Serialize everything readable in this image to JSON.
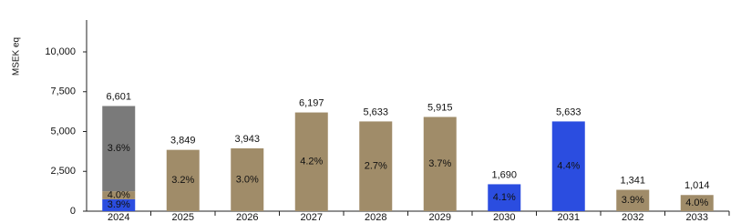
{
  "chart_data": {
    "type": "stacked_bar",
    "y_label": "MSEK eq",
    "categories": [
      "2024",
      "2025",
      "2026",
      "2027",
      "2028",
      "2029",
      "2030",
      "2031",
      "2032",
      "2033"
    ],
    "series": [
      {
        "color": "#2b4de0",
        "values": [
          750,
          null,
          null,
          null,
          null,
          null,
          1690,
          5633,
          null,
          null
        ],
        "segment_labels": [
          "3.9%",
          null,
          null,
          null,
          null,
          null,
          "4.1%",
          "4.4%",
          null,
          null
        ]
      },
      {
        "color": "#a08c69",
        "values": [
          500,
          3849,
          3943,
          6197,
          5633,
          5915,
          null,
          null,
          1341,
          1014
        ],
        "segment_labels": [
          "4.0%",
          "3.2%",
          "3.0%",
          "4.2%",
          "2.7%",
          "3.7%",
          null,
          null,
          "3.9%",
          "4.0%"
        ]
      },
      {
        "color": "#7a7a7a",
        "values": [
          5351,
          null,
          null,
          null,
          null,
          null,
          null,
          null,
          null,
          null
        ],
        "segment_labels": [
          "3.6%",
          null,
          null,
          null,
          null,
          null,
          null,
          null,
          null,
          null
        ]
      }
    ],
    "totals": [
      6601,
      3849,
      3943,
      6197,
      5633,
      5915,
      1690,
      5633,
      1341,
      1014
    ],
    "total_labels": [
      "6,601",
      "3,849",
      "3,943",
      "6,197",
      "5,633",
      "5,915",
      "1,690",
      "5,633",
      "1,341",
      "1,014"
    ],
    "ylim": [
      0,
      12000
    ],
    "yticks": [
      0,
      {
        "value": 2500,
        "label": "2,500"
      },
      {
        "value": 5000,
        "label": "5,000"
      },
      {
        "value": 7500,
        "label": "7,500"
      },
      {
        "value": 10000,
        "label": "10,000"
      }
    ],
    "grid": false
  }
}
